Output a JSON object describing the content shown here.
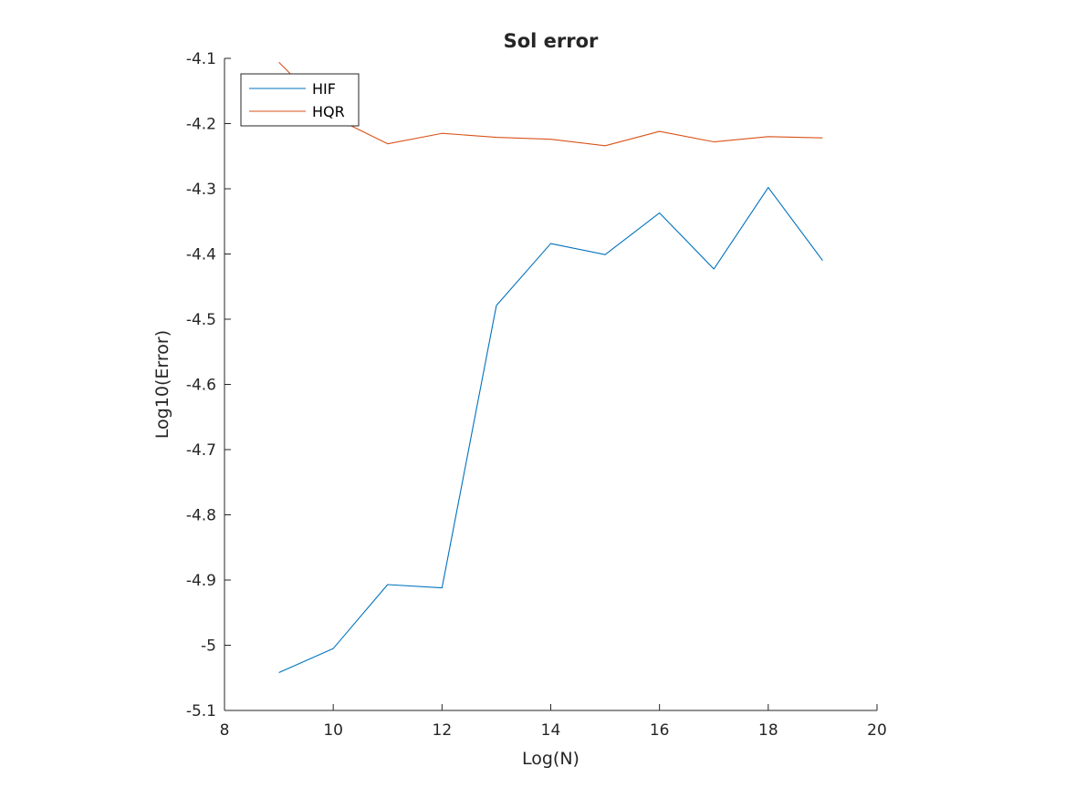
{
  "chart_data": {
    "type": "line",
    "title": "Sol error",
    "xlabel": "Log(N)",
    "ylabel": "Log10(Error)",
    "xlim": [
      8,
      20
    ],
    "ylim": [
      -5.1,
      -4.1
    ],
    "xticks": [
      "8",
      "10",
      "12",
      "14",
      "16",
      "18",
      "20"
    ],
    "yticks": [
      "-4.1",
      "-4.2",
      "-4.3",
      "-4.4",
      "-4.5",
      "-4.6",
      "-4.7",
      "-4.8",
      "-4.9",
      "-5",
      "-5.1"
    ],
    "grid": false,
    "legend_position": "top-left",
    "x": [
      9,
      10,
      11,
      12,
      13,
      14,
      15,
      16,
      17,
      18,
      19
    ],
    "series": [
      {
        "name": "HIF",
        "color": "#0072BD",
        "values": [
          -5.042,
          -5.005,
          -4.907,
          -4.912,
          -4.479,
          -4.384,
          -4.401,
          -4.337,
          -4.423,
          -4.298,
          -4.41
        ]
      },
      {
        "name": "HQR",
        "color": "#D95319",
        "values": [
          -4.106,
          -4.19,
          -4.231,
          -4.215,
          -4.221,
          -4.224,
          -4.234,
          -4.212,
          -4.228,
          -4.22,
          -4.222
        ]
      }
    ]
  }
}
